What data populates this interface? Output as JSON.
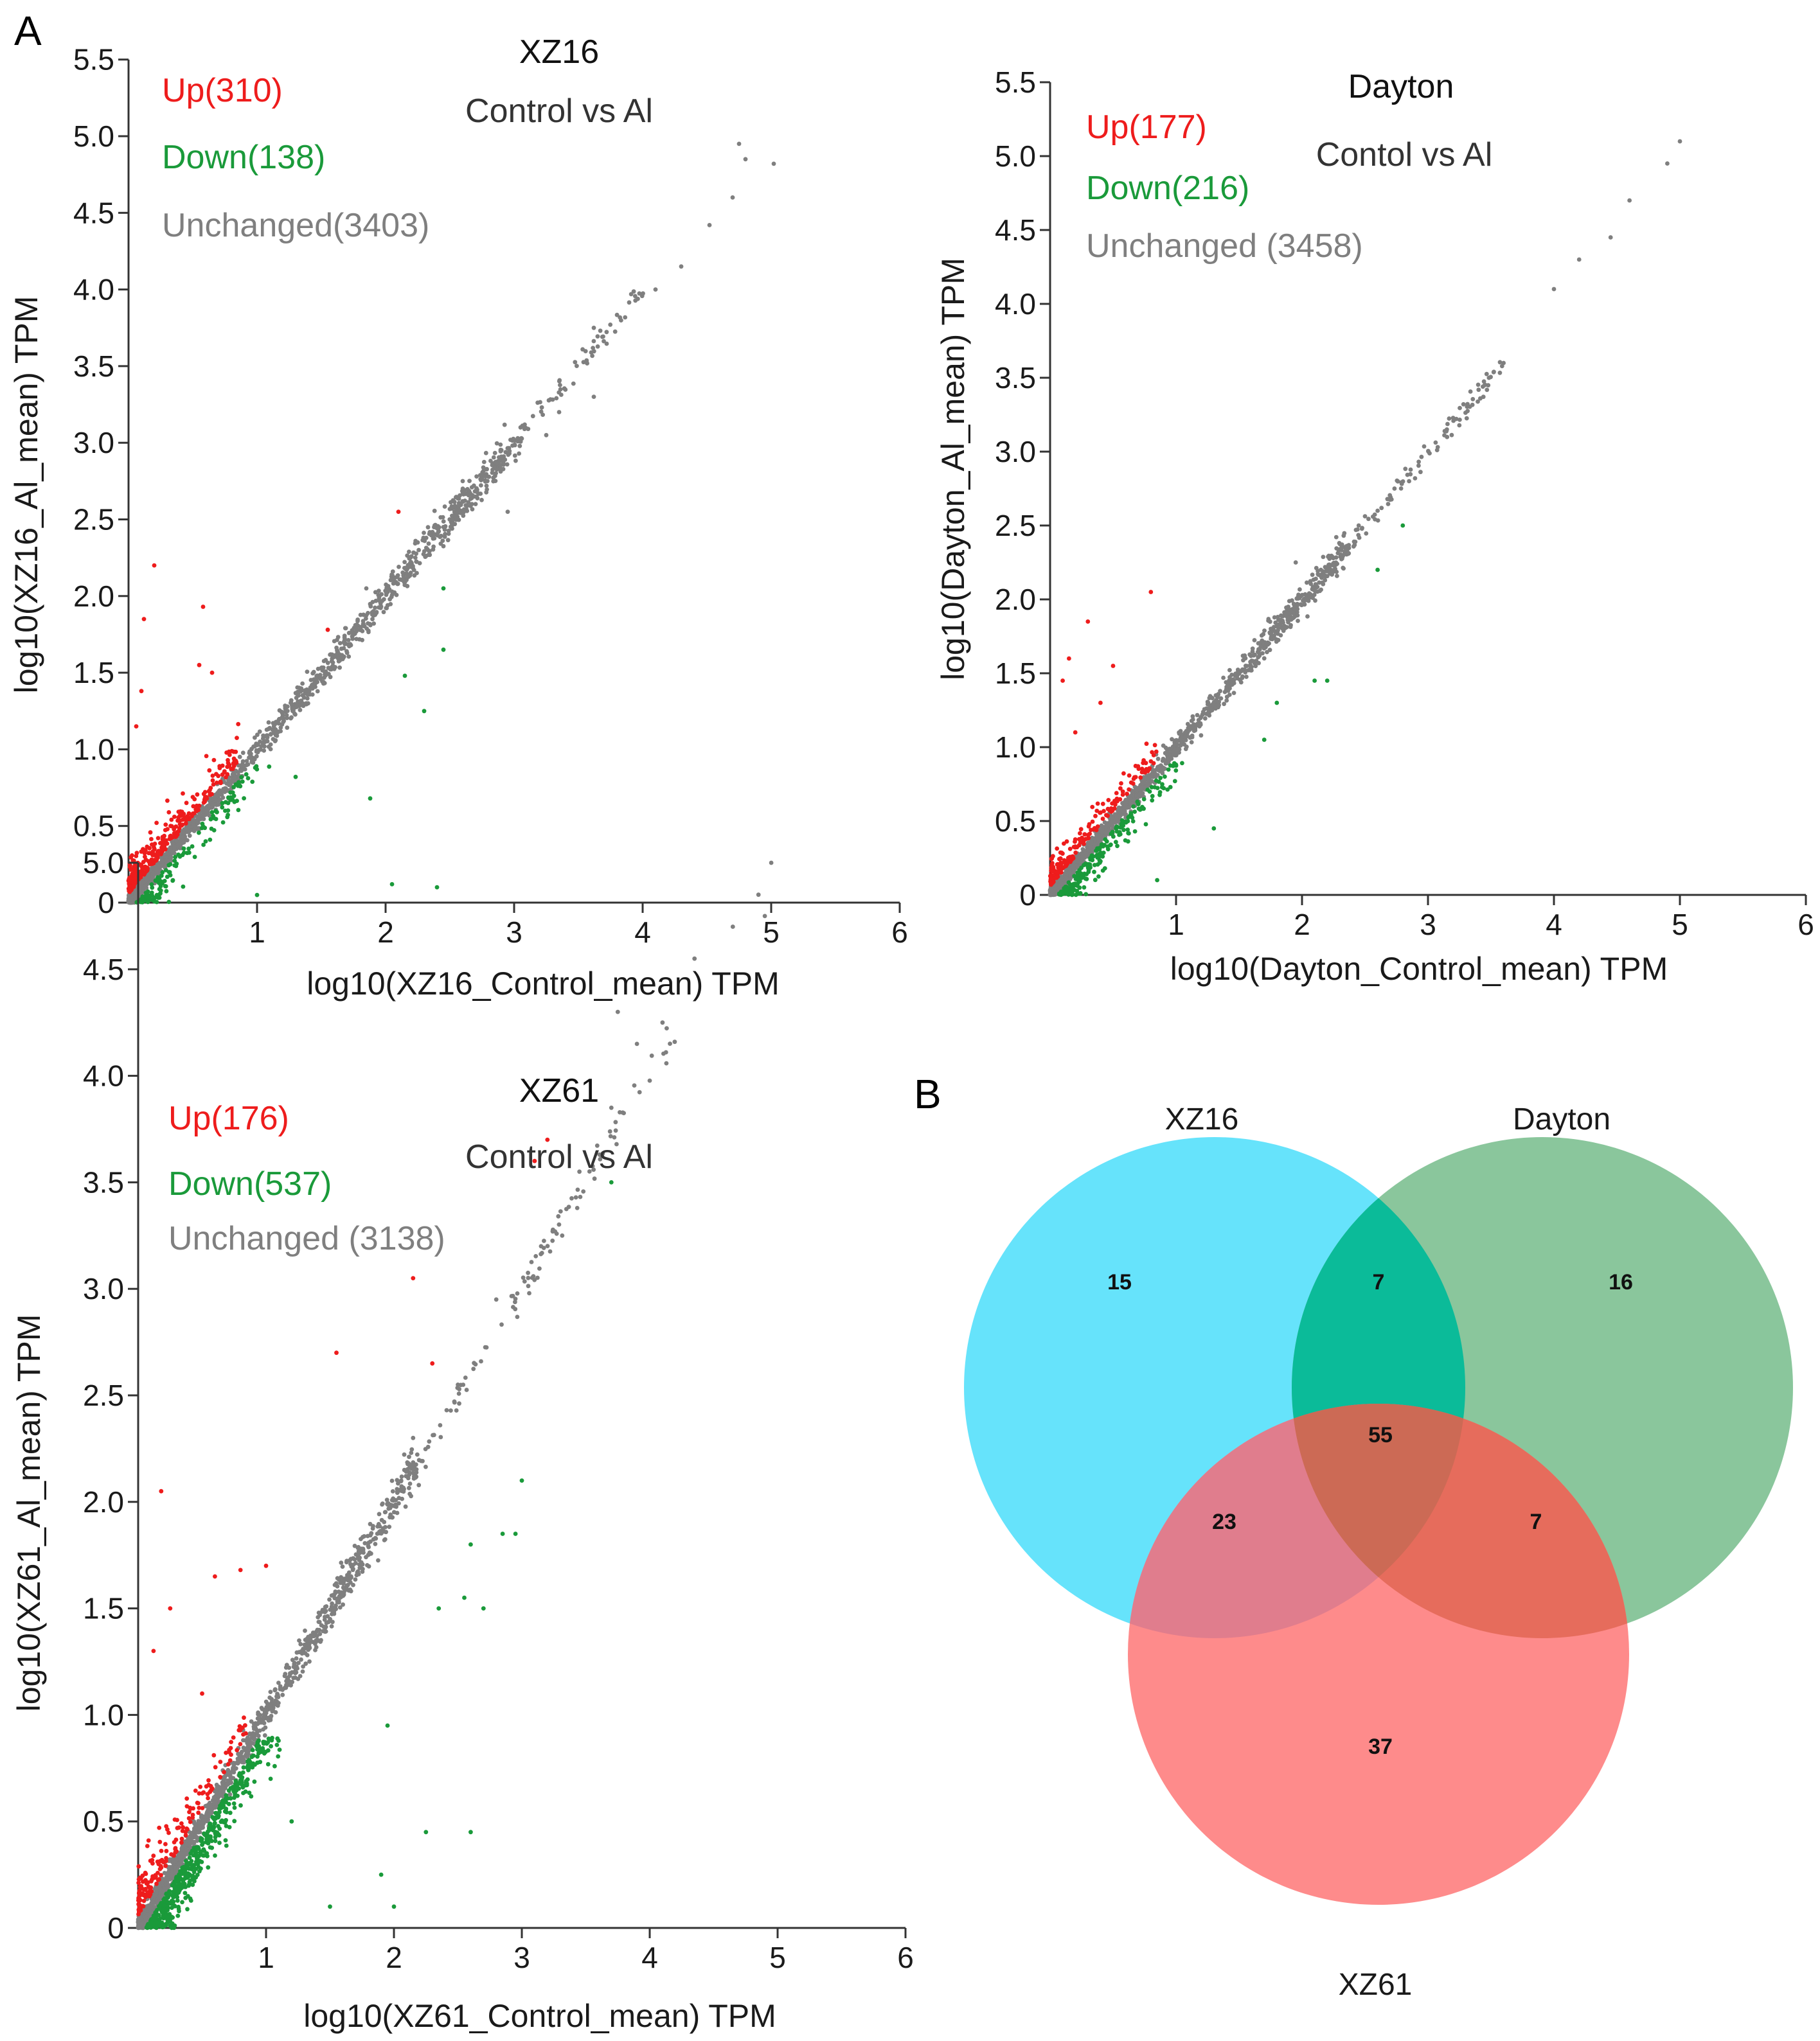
{
  "figure": {
    "panel_labels": [
      "A",
      "B"
    ],
    "colors": {
      "up": "#ee1c1c",
      "down": "#1a9a3a",
      "unchanged": "#7f7f7f",
      "axis": "#333333"
    }
  },
  "chart_data": [
    {
      "type": "scatter",
      "id": "xz16",
      "title": "XZ16",
      "subtitle": "Control vs Al",
      "xlabel": "log10(XZ16_Control_mean) TPM",
      "ylabel": "log10(XZ16_Al_mean) TPM",
      "xlim": [
        0,
        6
      ],
      "ylim": [
        0,
        5.5
      ],
      "xticks": [
        "1",
        "2",
        "3",
        "4",
        "5",
        "6"
      ],
      "yticks": [
        "0",
        "0.5",
        "1.0",
        "1.5",
        "2.0",
        "2.5",
        "3.0",
        "3.5",
        "4.0",
        "4.5",
        "5.0",
        "5.5"
      ],
      "legend": [
        {
          "label": "Up(310)",
          "color": "#ee1c1c"
        },
        {
          "label": "Down(138)",
          "color": "#1a9a3a"
        },
        {
          "label": "Unchanged(3403)",
          "color": "#7f7f7f"
        }
      ],
      "series": [
        {
          "name": "Up",
          "count": 310,
          "color": "#ee1c1c"
        },
        {
          "name": "Down",
          "count": 138,
          "color": "#1a9a3a"
        },
        {
          "name": "Unchanged",
          "count": 3403,
          "color": "#7f7f7f"
        }
      ],
      "outliers": {
        "up": [
          [
            0.2,
            2.2
          ],
          [
            0.12,
            1.85
          ],
          [
            0.58,
            1.93
          ],
          [
            0.1,
            1.38
          ],
          [
            0.55,
            1.55
          ],
          [
            0.65,
            1.5
          ],
          [
            1.55,
            1.78
          ],
          [
            2.1,
            2.55
          ],
          [
            0.06,
            1.15
          ]
        ],
        "down": [
          [
            2.15,
            1.48
          ],
          [
            2.3,
            1.25
          ],
          [
            2.45,
            1.65
          ],
          [
            1.3,
            0.82
          ],
          [
            1.88,
            0.68
          ],
          [
            2.05,
            0.12
          ],
          [
            2.4,
            0.1
          ],
          [
            1.0,
            0.05
          ],
          [
            0.6,
            0.4
          ],
          [
            2.45,
            2.05
          ]
        ],
        "unchanged": [
          [
            4.75,
            4.95
          ],
          [
            4.8,
            4.85
          ],
          [
            5.02,
            4.82
          ],
          [
            4.7,
            4.6
          ],
          [
            4.52,
            4.42
          ],
          [
            4.3,
            4.15
          ],
          [
            4.1,
            4.0
          ],
          [
            3.62,
            3.75
          ],
          [
            3.62,
            3.3
          ],
          [
            3.25,
            3.05
          ],
          [
            2.9,
            2.95
          ],
          [
            2.7,
            2.6
          ],
          [
            2.6,
            2.75
          ],
          [
            2.95,
            2.55
          ],
          [
            3.35,
            3.2
          ],
          [
            3.05,
            3.1
          ],
          [
            2.25,
            2.35
          ],
          [
            2.45,
            2.45
          ],
          [
            1.85,
            2.05
          ]
        ]
      },
      "trend": {
        "x_end": 5.0,
        "unchanged_x_max": 3.0,
        "upper_x_max": 4.0
      }
    },
    {
      "type": "scatter",
      "id": "dayton",
      "title": "Dayton",
      "subtitle": "Contol vs Al",
      "xlabel": "log10(Dayton_Control_mean) TPM",
      "ylabel": "log10(Dayton_Al_mean) TPM",
      "xlim": [
        0,
        6
      ],
      "ylim": [
        0,
        5.5
      ],
      "xticks": [
        "1",
        "2",
        "3",
        "4",
        "5",
        "6"
      ],
      "yticks": [
        "0",
        "0.5",
        "1.0",
        "1.5",
        "2.0",
        "2.5",
        "3.0",
        "3.5",
        "4.0",
        "4.5",
        "5.0",
        "5.5"
      ],
      "legend": [
        {
          "label": "Up(177)",
          "color": "#ee1c1c"
        },
        {
          "label": "Down(216)",
          "color": "#1a9a3a"
        },
        {
          "label": "Unchanged (3458)",
          "color": "#7f7f7f"
        }
      ],
      "series": [
        {
          "name": "Up",
          "count": 177,
          "color": "#ee1c1c"
        },
        {
          "name": "Down",
          "count": 216,
          "color": "#1a9a3a"
        },
        {
          "name": "Unchanged",
          "count": 3458,
          "color": "#7f7f7f"
        }
      ],
      "outliers": {
        "up": [
          [
            0.8,
            2.05
          ],
          [
            0.3,
            1.85
          ],
          [
            0.5,
            1.55
          ],
          [
            0.15,
            1.6
          ],
          [
            0.1,
            1.45
          ],
          [
            0.2,
            1.1
          ],
          [
            0.4,
            1.3
          ]
        ],
        "down": [
          [
            2.1,
            1.45
          ],
          [
            2.2,
            1.45
          ],
          [
            1.7,
            1.05
          ],
          [
            1.3,
            0.45
          ],
          [
            0.85,
            0.1
          ],
          [
            2.6,
            2.2
          ],
          [
            2.8,
            2.5
          ],
          [
            1.8,
            1.3
          ]
        ],
        "unchanged": [
          [
            5.0,
            5.1
          ],
          [
            4.9,
            4.95
          ],
          [
            4.6,
            4.7
          ],
          [
            4.45,
            4.45
          ],
          [
            4.2,
            4.3
          ],
          [
            4.0,
            4.1
          ],
          [
            3.6,
            3.6
          ],
          [
            3.45,
            3.45
          ],
          [
            3.15,
            3.15
          ],
          [
            2.85,
            2.8
          ],
          [
            2.45,
            2.5
          ],
          [
            2.15,
            2.2
          ],
          [
            1.95,
            2.25
          ],
          [
            2.6,
            2.6
          ]
        ]
      },
      "trend": {
        "x_end": 5.0,
        "unchanged_x_max": 2.4,
        "upper_x_max": 3.6
      }
    },
    {
      "type": "scatter",
      "id": "xz61",
      "title": "XZ61",
      "subtitle": "Control vs Al",
      "xlabel": "log10(XZ61_Control_mean) TPM",
      "ylabel": "log10(XZ61_Al_mean) TPM",
      "xlim": [
        0,
        6
      ],
      "ylim": [
        0,
        5.0
      ],
      "xticks": [
        "1",
        "2",
        "3",
        "4",
        "5",
        "6"
      ],
      "yticks": [
        "0",
        "0.5",
        "1.0",
        "1.5",
        "2.0",
        "2.5",
        "3.0",
        "3.5",
        "4.0",
        "4.5",
        "5.0"
      ],
      "legend": [
        {
          "label": "Up(176)",
          "color": "#ee1c1c"
        },
        {
          "label": "Down(537)",
          "color": "#1a9a3a"
        },
        {
          "label": "Unchanged (3138)",
          "color": "#7f7f7f"
        }
      ],
      "series": [
        {
          "name": "Up",
          "count": 176,
          "color": "#ee1c1c"
        },
        {
          "name": "Down",
          "count": 537,
          "color": "#1a9a3a"
        },
        {
          "name": "Unchanged",
          "count": 3138,
          "color": "#7f7f7f"
        }
      ],
      "outliers": {
        "up": [
          [
            0.18,
            2.05
          ],
          [
            0.6,
            1.65
          ],
          [
            0.8,
            1.68
          ],
          [
            1.55,
            2.7
          ],
          [
            0.25,
            1.5
          ],
          [
            0.12,
            1.3
          ],
          [
            2.15,
            3.05
          ],
          [
            3.1,
            3.6
          ],
          [
            3.2,
            3.7
          ],
          [
            2.3,
            2.65
          ],
          [
            1.0,
            1.7
          ],
          [
            0.5,
            1.1
          ]
        ],
        "down": [
          [
            3.0,
            2.1
          ],
          [
            2.85,
            1.85
          ],
          [
            2.95,
            1.85
          ],
          [
            2.6,
            1.8
          ],
          [
            2.55,
            1.55
          ],
          [
            2.7,
            1.5
          ],
          [
            2.35,
            1.5
          ],
          [
            1.95,
            0.95
          ],
          [
            2.25,
            0.45
          ],
          [
            1.9,
            0.25
          ],
          [
            2.6,
            0.45
          ],
          [
            1.2,
            0.5
          ],
          [
            1.5,
            0.1
          ],
          [
            3.7,
            3.5
          ],
          [
            2.0,
            0.1
          ]
        ],
        "unchanged": [
          [
            4.95,
            5.0
          ],
          [
            4.85,
            4.85
          ],
          [
            4.65,
            4.7
          ],
          [
            4.35,
            4.55
          ],
          [
            4.1,
            4.25
          ],
          [
            3.9,
            4.15
          ],
          [
            3.7,
            3.85
          ],
          [
            3.45,
            3.55
          ],
          [
            3.15,
            3.2
          ],
          [
            2.8,
            2.95
          ],
          [
            2.5,
            2.55
          ],
          [
            2.15,
            2.3
          ],
          [
            3.75,
            4.3
          ],
          [
            4.9,
            4.75
          ]
        ]
      },
      "trend": {
        "x_end": 5.0,
        "unchanged_x_max": 2.2,
        "upper_x_max": 4.2
      }
    }
  ],
  "venn": {
    "sets": [
      {
        "label": "XZ16",
        "color": "#66e3fb"
      },
      {
        "label": "Dayton",
        "color": "#8ac69c"
      },
      {
        "label": "XZ61",
        "color": "#fe8b8b"
      }
    ],
    "regions": [
      {
        "sets": [
          "XZ16"
        ],
        "count": "15"
      },
      {
        "sets": [
          "XZ16",
          "Dayton"
        ],
        "count": "7"
      },
      {
        "sets": [
          "Dayton"
        ],
        "count": "16"
      },
      {
        "sets": [
          "XZ16",
          "Dayton",
          "XZ61"
        ],
        "count": "55"
      },
      {
        "sets": [
          "XZ16",
          "XZ61"
        ],
        "count": "23"
      },
      {
        "sets": [
          "Dayton",
          "XZ61"
        ],
        "count": "7"
      },
      {
        "sets": [
          "XZ61"
        ],
        "count": "37"
      }
    ],
    "overlap_colors": {
      "xz16_dayton": "#0bbb99",
      "xz16_xz61": "#e07d8d",
      "dayton_xz61": "#e66c5c",
      "all": "#cc6a55"
    }
  }
}
